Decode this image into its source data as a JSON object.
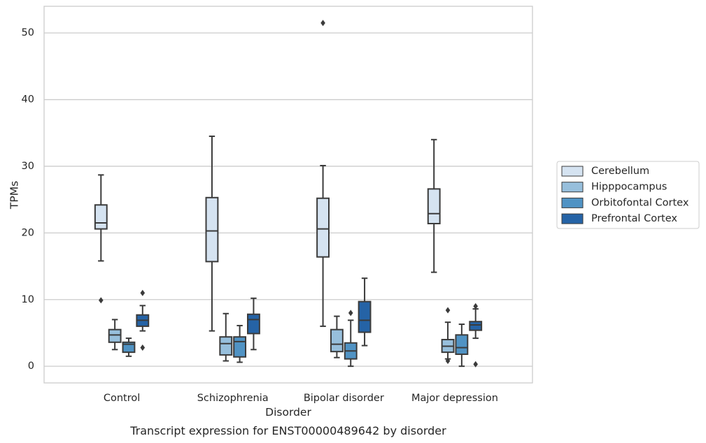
{
  "caption": "Transcript expression for ENST00000489642 by disorder",
  "chart_data": {
    "type": "box",
    "xlabel": "Disorder",
    "ylabel": "TPMs",
    "ylim": [
      -2.5,
      54
    ],
    "yticks": [
      0,
      10,
      20,
      30,
      40,
      50
    ],
    "grid": "horizontal",
    "legend_position": "right",
    "categories": [
      "Control",
      "Schizophrenia",
      "Bipolar disorder",
      "Major depression"
    ],
    "series": [
      {
        "name": "Cerebellum",
        "color": "#d5e3f1",
        "boxes": [
          {
            "whislo": 15.8,
            "q1": 20.6,
            "med": 21.5,
            "q3": 24.2,
            "whishi": 28.7,
            "fliers": [
              9.9
            ]
          },
          {
            "whislo": 5.3,
            "q1": 15.7,
            "med": 20.3,
            "q3": 25.3,
            "whishi": 34.5,
            "fliers": []
          },
          {
            "whislo": 6.0,
            "q1": 16.4,
            "med": 20.6,
            "q3": 25.2,
            "whishi": 30.1,
            "fliers": [
              51.5
            ]
          },
          {
            "whislo": 14.1,
            "q1": 21.4,
            "med": 22.9,
            "q3": 26.6,
            "whishi": 34.0,
            "fliers": []
          }
        ]
      },
      {
        "name": "Hipppocampus",
        "color": "#97bfdc",
        "boxes": [
          {
            "whislo": 2.5,
            "q1": 3.6,
            "med": 4.7,
            "q3": 5.5,
            "whishi": 7.0,
            "fliers": []
          },
          {
            "whislo": 0.8,
            "q1": 1.7,
            "med": 3.4,
            "q3": 4.4,
            "whishi": 7.9,
            "fliers": []
          },
          {
            "whislo": 1.3,
            "q1": 2.2,
            "med": 3.3,
            "q3": 5.5,
            "whishi": 7.5,
            "fliers": []
          },
          {
            "whislo": 1.1,
            "q1": 2.1,
            "med": 3.0,
            "q3": 4.0,
            "whishi": 6.6,
            "fliers": [
              0.8,
              8.4
            ]
          }
        ]
      },
      {
        "name": "Orbitofontal Cortex",
        "color": "#5093c4",
        "boxes": [
          {
            "whislo": 1.5,
            "q1": 2.1,
            "med": 3.3,
            "q3": 3.6,
            "whishi": 4.2,
            "fliers": []
          },
          {
            "whislo": 0.6,
            "q1": 1.4,
            "med": 3.7,
            "q3": 4.4,
            "whishi": 6.1,
            "fliers": []
          },
          {
            "whislo": 0.0,
            "q1": 1.1,
            "med": 2.3,
            "q3": 3.5,
            "whishi": 6.9,
            "fliers": [
              8.0
            ]
          },
          {
            "whislo": 0.0,
            "q1": 1.8,
            "med": 2.8,
            "q3": 4.7,
            "whishi": 6.3,
            "fliers": []
          }
        ]
      },
      {
        "name": "Prefrontal Cortex",
        "color": "#2563a6",
        "boxes": [
          {
            "whislo": 5.3,
            "q1": 6.0,
            "med": 6.9,
            "q3": 7.7,
            "whishi": 9.1,
            "fliers": [
              11.0,
              2.8
            ]
          },
          {
            "whislo": 2.5,
            "q1": 4.9,
            "med": 7.0,
            "q3": 7.8,
            "whishi": 10.2,
            "fliers": []
          },
          {
            "whislo": 3.1,
            "q1": 5.1,
            "med": 6.9,
            "q3": 9.7,
            "whishi": 13.2,
            "fliers": []
          },
          {
            "whislo": 4.2,
            "q1": 5.4,
            "med": 6.2,
            "q3": 6.7,
            "whishi": 8.6,
            "fliers": [
              9.0,
              0.3
            ]
          }
        ]
      }
    ]
  }
}
